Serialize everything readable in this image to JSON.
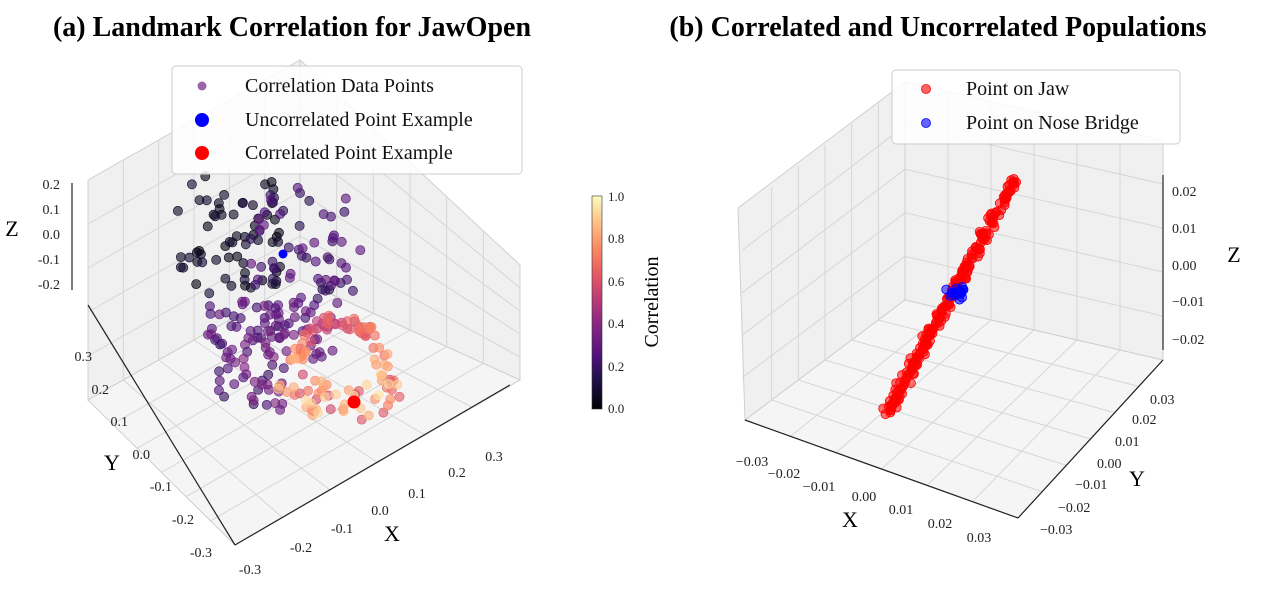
{
  "chart_data": [
    {
      "type": "scatter",
      "title": "(a) Landmark Correlation for JawOpen",
      "xlabel": "X",
      "ylabel": "Y",
      "zlabel": "Z",
      "x_ticks": [
        "-0.3",
        "-0.2",
        "-0.1",
        "0.0",
        "0.1",
        "0.2",
        "0.3"
      ],
      "y_ticks": [
        "-0.3",
        "-0.2",
        "-0.1",
        "0.0",
        "0.1",
        "0.2",
        "0.3"
      ],
      "z_ticks": [
        "-0.2",
        "-0.1",
        "0.0",
        "0.1",
        "0.2"
      ],
      "xlim": [
        -0.3,
        0.3
      ],
      "ylim": [
        -0.3,
        0.3
      ],
      "zlim": [
        -0.2,
        0.2
      ],
      "legend": [
        {
          "label": "Correlation Data Points",
          "color": "#8b4a9c"
        },
        {
          "label": "Uncorrelated Point Example",
          "color": "#0000ff"
        },
        {
          "label": "Correlated Point Example",
          "color": "#ff0000"
        }
      ],
      "legend_loc": "top-center",
      "colorbar": {
        "label": "Correlation",
        "colormap": "magma",
        "ticks": [
          "0.0",
          "0.2",
          "0.4",
          "0.6",
          "0.8",
          "1.0"
        ],
        "range": [
          0.0,
          1.0
        ]
      },
      "uncorrelated_example": {
        "x": -0.02,
        "y": 0.1,
        "z": 0.06,
        "correlation": 0.05
      },
      "correlated_example": {
        "x": 0.03,
        "y": -0.18,
        "z": -0.05,
        "correlation": 0.97
      }
    },
    {
      "type": "scatter",
      "title": "(b) Correlated and Uncorrelated Populations",
      "xlabel": "X",
      "ylabel": "Y",
      "zlabel": "Z",
      "x_ticks": [
        "−0.03",
        "−0.02",
        "−0.01",
        "0.00",
        "0.01",
        "0.02",
        "0.03"
      ],
      "y_ticks": [
        "−0.03",
        "−0.02",
        "−0.01",
        "0.00",
        "0.01",
        "0.02",
        "0.03"
      ],
      "z_ticks": [
        "−0.02",
        "−0.01",
        "0.00",
        "0.01",
        "0.02"
      ],
      "xlim": [
        -0.03,
        0.03
      ],
      "ylim": [
        -0.03,
        0.03
      ],
      "zlim": [
        -0.025,
        0.025
      ],
      "legend": [
        {
          "label": "Point on Jaw",
          "color": "#ff0000"
        },
        {
          "label": "Point on Nose Bridge",
          "color": "#0000ff"
        }
      ],
      "legend_loc": "top-right",
      "series": [
        {
          "name": "Point on Jaw",
          "color": "#ff0000",
          "distribution": "line",
          "from": [
            -0.025,
            -0.025,
            -0.022
          ],
          "to": [
            0.025,
            0.025,
            0.022
          ],
          "count": 220,
          "spread": 0.0012
        },
        {
          "name": "Point on Nose Bridge",
          "color": "#0000ff",
          "distribution": "cluster",
          "center": [
            0.0,
            0.0,
            0.0
          ],
          "count": 22,
          "spread": 0.0015
        }
      ]
    }
  ]
}
